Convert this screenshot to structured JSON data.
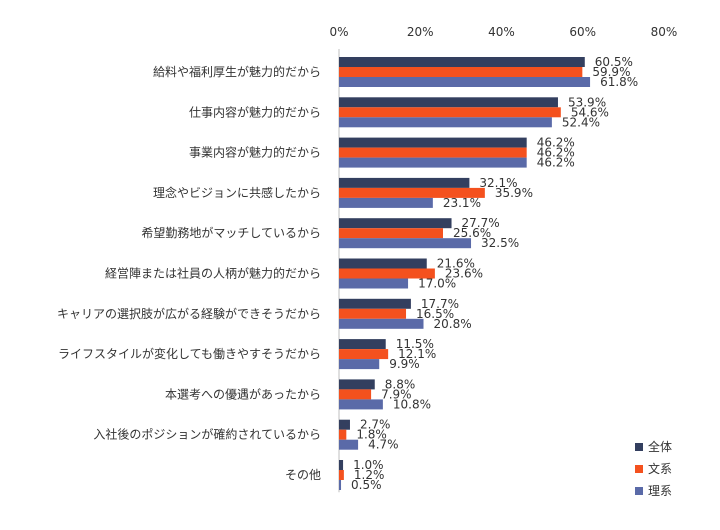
{
  "chart_data": {
    "type": "bar",
    "orientation": "horizontal",
    "title": "",
    "xlabel": "",
    "ylabel": "",
    "xlim": [
      0,
      80
    ],
    "xticks": [
      0,
      20,
      40,
      60,
      80
    ],
    "tick_suffix": "%",
    "grid": false,
    "legend_position": "bottom-right",
    "categories": [
      "給料や福利厚生が魅力的だから",
      "仕事内容が魅力的だから",
      "事業内容が魅力的だから",
      "理念やビジョンに共感したから",
      "希望勤務地がマッチしているから",
      "経営陣または社員の人柄が魅力的だから",
      "キャリアの選択肢が広がる経験ができそうだから",
      "ライフスタイルが変化しても働きやすそうだから",
      "本選考への優遇があったから",
      "入社後のポジションが確約されているから",
      "その他"
    ],
    "series": [
      {
        "name": "全体",
        "color": "#333f5f",
        "values": [
          60.5,
          53.9,
          46.2,
          32.1,
          27.7,
          21.6,
          17.7,
          11.5,
          8.8,
          2.7,
          1.0
        ]
      },
      {
        "name": "文系",
        "color": "#f4511e",
        "values": [
          59.9,
          54.6,
          46.2,
          35.9,
          25.6,
          23.6,
          16.5,
          12.1,
          7.9,
          1.8,
          1.2
        ]
      },
      {
        "name": "理系",
        "color": "#5a6aa8",
        "values": [
          61.8,
          52.4,
          46.2,
          23.1,
          32.5,
          17.0,
          20.8,
          9.9,
          10.8,
          4.7,
          0.5
        ]
      }
    ]
  }
}
